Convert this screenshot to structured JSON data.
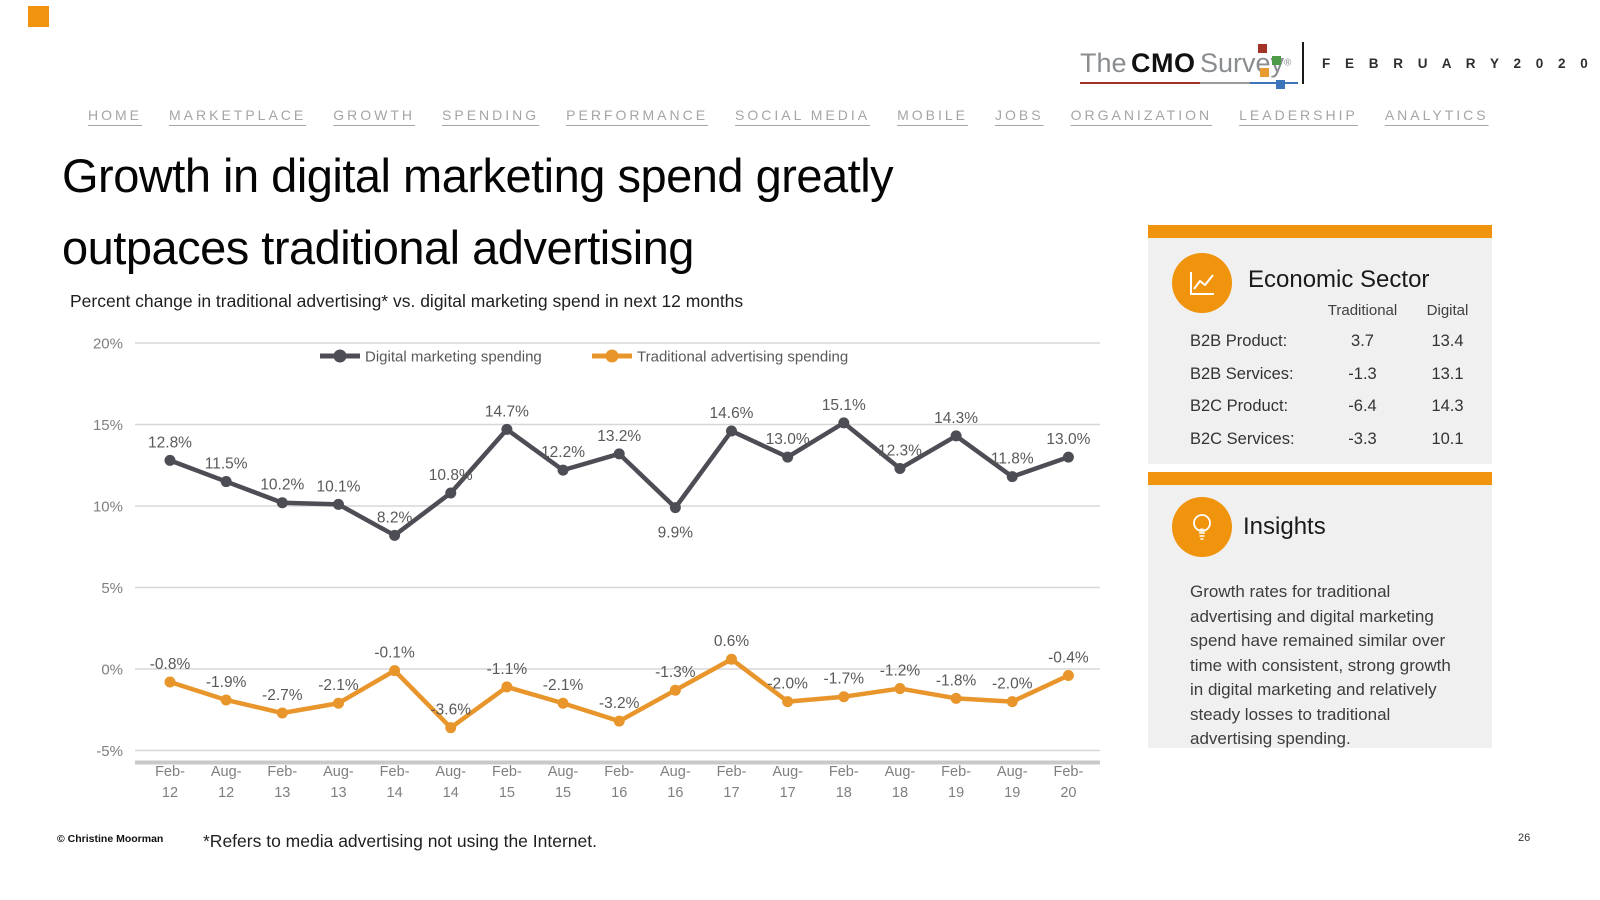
{
  "logo": {
    "the": "The",
    "cmo": "CMO",
    "survey": "Survey",
    "reg": "®",
    "edition": "F E B R U A R Y   2 0 2 0"
  },
  "nav": {
    "items": [
      "HOME",
      "MARKETPLACE",
      "GROWTH",
      "SPENDING",
      "PERFORMANCE",
      "SOCIAL MEDIA",
      "MOBILE",
      "JOBS",
      "ORGANIZATION",
      "LEADERSHIP",
      "ANALYTICS"
    ]
  },
  "header": {
    "title_line1": "Growth in digital marketing spend greatly",
    "title_line2": "outpaces traditional advertising",
    "subtitle": "Percent change in traditional advertising* vs. digital marketing spend in next 12 months"
  },
  "chart_data": {
    "type": "line",
    "title": "",
    "xlabel": "",
    "ylabel": "",
    "categories": [
      "Feb-12",
      "Aug-12",
      "Feb-13",
      "Aug-13",
      "Feb-14",
      "Aug-14",
      "Feb-15",
      "Aug-15",
      "Feb-16",
      "Aug-16",
      "Feb-17",
      "Aug-17",
      "Feb-18",
      "Aug-18",
      "Feb-19",
      "Aug-19",
      "Feb-20"
    ],
    "series": [
      {
        "name": "Digital marketing spending",
        "color": "#4D4D55",
        "values": [
          12.8,
          11.5,
          10.2,
          10.1,
          8.2,
          10.8,
          14.7,
          12.2,
          13.2,
          9.9,
          14.6,
          13.0,
          15.1,
          12.3,
          14.3,
          11.8,
          13.0
        ]
      },
      {
        "name": "Traditional advertising spending",
        "color": "#E8962B",
        "values": [
          -0.8,
          -1.9,
          -2.7,
          -2.1,
          -0.1,
          -3.6,
          -1.1,
          -2.1,
          -3.2,
          -1.3,
          0.6,
          -2.0,
          -1.7,
          -1.2,
          -1.8,
          -2.0,
          -0.4
        ]
      }
    ],
    "ylim": [
      -5,
      20
    ],
    "yticks": [
      20,
      15,
      10,
      5,
      0,
      -5
    ],
    "ytick_suffix": "%",
    "grid": true,
    "legend_position": "top"
  },
  "sector_panel": {
    "title": "Economic Sector",
    "col1": "Traditional",
    "col2": "Digital",
    "rows": [
      {
        "label": "B2B Product:",
        "traditional": "3.7",
        "digital": "13.4"
      },
      {
        "label": "B2B Services:",
        "traditional": "-1.3",
        "digital": "13.1"
      },
      {
        "label": "B2C Product:",
        "traditional": "-6.4",
        "digital": "14.3"
      },
      {
        "label": "B2C Services:",
        "traditional": "-3.3",
        "digital": "10.1"
      }
    ]
  },
  "insights_panel": {
    "title": "Insights",
    "text": "Growth rates for traditional advertising and digital marketing spend have remained similar over time with consistent, strong growth in digital marketing and relatively steady losses to traditional advertising spending."
  },
  "footer": {
    "copyright": "© Christine Moorman",
    "footnote": "*Refers to media advertising not using the Internet.",
    "page_number": "26"
  },
  "colors": {
    "accent_orange": "#F0930D",
    "line_orange": "#E8962B",
    "line_dark": "#4D4D55",
    "panel_bg": "#F0F0F0",
    "grid": "#D7D7D7",
    "axis_text": "#7F7F7F",
    "data_label": "#595959"
  }
}
